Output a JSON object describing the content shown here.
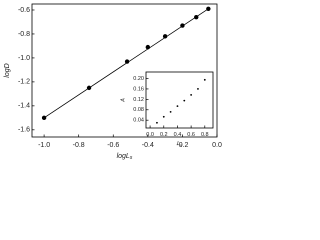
{
  "chart_data": [
    {
      "type": "scatter",
      "x_label": "logL",
      "x_label_sub": "s",
      "y_label": "logD",
      "xlim": [
        -1.07,
        0
      ],
      "ylim": [
        -1.66,
        -0.55
      ],
      "xticks": [
        {
          "value": -1,
          "label": "-1.0"
        },
        -0.8,
        -0.6,
        -0.4,
        -0.2,
        {
          "value": 0,
          "label": "0.0"
        }
      ],
      "yticks": [
        -1.6,
        -1.4,
        -1.2,
        {
          "value": -1,
          "label": "-1.0"
        },
        -0.8,
        -0.6
      ],
      "points": {
        "x": [
          -1.0,
          -0.74,
          -0.52,
          -0.4,
          -0.3,
          -0.2,
          -0.12,
          -0.05
        ],
        "y": [
          -1.5,
          -1.25,
          -1.03,
          -0.91,
          -0.82,
          -0.73,
          -0.66,
          -0.59
        ]
      },
      "fit_line": {
        "x": [
          -1.0,
          -0.05
        ],
        "y": [
          -1.5,
          -0.59
        ]
      }
    },
    {
      "type": "scatter",
      "x_label": "L",
      "x_label_sub": "s",
      "y_label": "A",
      "xlim": [
        -0.06,
        0.92
      ],
      "ylim": [
        0.01,
        0.225
      ],
      "xticks": [
        {
          "value": 0,
          "label": "0.0"
        },
        0.2,
        0.4,
        0.6,
        0.8
      ],
      "yticks": [
        0.04,
        0.08,
        0.12,
        0.16,
        {
          "value": 0.2,
          "label": "0.20"
        }
      ],
      "points": {
        "x": [
          0.1,
          0.2,
          0.3,
          0.4,
          0.5,
          0.6,
          0.7,
          0.8
        ],
        "y": [
          0.03,
          0.053,
          0.072,
          0.094,
          0.115,
          0.137,
          0.16,
          0.195
        ]
      }
    }
  ]
}
